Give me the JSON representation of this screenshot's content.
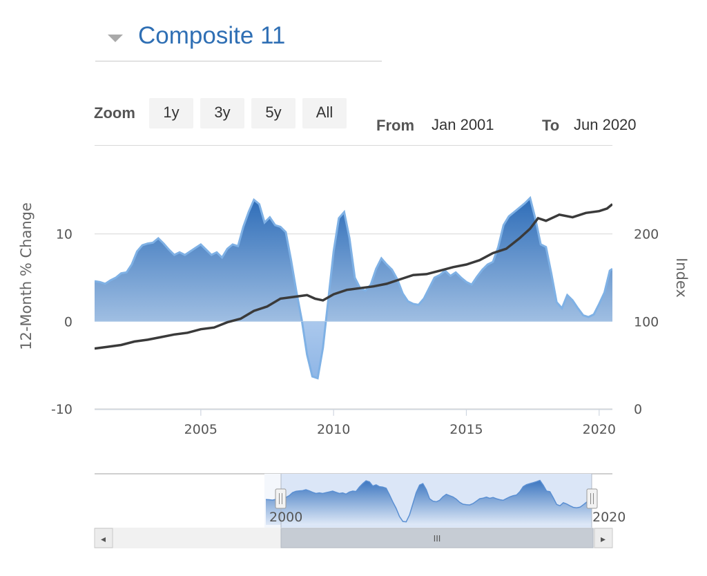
{
  "header": {
    "title": "Composite 11"
  },
  "toolbar": {
    "zoom_label": "Zoom",
    "buttons": [
      "1y",
      "3y",
      "5y",
      "All"
    ],
    "from_label": "From",
    "from_value": "Jan 2001",
    "to_label": "To",
    "to_value": "Jun 2020"
  },
  "chart_data": {
    "type": "area",
    "x_range": [
      2001.0,
      2020.5
    ],
    "x_ticks": [
      2005,
      2010,
      2015,
      2020
    ],
    "y_left": {
      "label": "12-Month % Change",
      "range": [
        -10,
        20
      ],
      "ticks": [
        10,
        0,
        -10
      ]
    },
    "y_right": {
      "label": "Index",
      "range": [
        0,
        300
      ],
      "ticks": [
        200,
        100,
        0
      ]
    },
    "series": [
      {
        "axis": "left",
        "points": [
          [
            2001.0,
            4.6
          ],
          [
            2001.2,
            4.5
          ],
          [
            2001.4,
            4.3
          ],
          [
            2001.6,
            4.7
          ],
          [
            2001.8,
            5.0
          ],
          [
            2002.0,
            5.5
          ],
          [
            2002.2,
            5.6
          ],
          [
            2002.4,
            6.5
          ],
          [
            2002.6,
            8.0
          ],
          [
            2002.8,
            8.7
          ],
          [
            2003.0,
            8.9
          ],
          [
            2003.2,
            9.0
          ],
          [
            2003.4,
            9.5
          ],
          [
            2003.6,
            8.9
          ],
          [
            2003.8,
            8.2
          ],
          [
            2004.0,
            7.6
          ],
          [
            2004.2,
            7.9
          ],
          [
            2004.4,
            7.6
          ],
          [
            2004.6,
            8.0
          ],
          [
            2004.8,
            8.4
          ],
          [
            2005.0,
            8.8
          ],
          [
            2005.2,
            8.2
          ],
          [
            2005.4,
            7.6
          ],
          [
            2005.6,
            7.9
          ],
          [
            2005.8,
            7.3
          ],
          [
            2006.0,
            8.3
          ],
          [
            2006.2,
            8.8
          ],
          [
            2006.4,
            8.6
          ],
          [
            2006.6,
            10.8
          ],
          [
            2006.8,
            12.5
          ],
          [
            2007.0,
            13.9
          ],
          [
            2007.2,
            13.4
          ],
          [
            2007.4,
            11.3
          ],
          [
            2007.6,
            11.9
          ],
          [
            2007.8,
            11.0
          ],
          [
            2008.0,
            10.8
          ],
          [
            2008.2,
            10.2
          ],
          [
            2008.4,
            7.0
          ],
          [
            2008.6,
            3.4
          ],
          [
            2008.8,
            0.2
          ],
          [
            2009.0,
            -3.8
          ],
          [
            2009.2,
            -6.3
          ],
          [
            2009.4,
            -6.5
          ],
          [
            2009.6,
            -3.0
          ],
          [
            2009.8,
            2.5
          ],
          [
            2010.0,
            8.0
          ],
          [
            2010.2,
            11.8
          ],
          [
            2010.4,
            12.5
          ],
          [
            2010.6,
            9.5
          ],
          [
            2010.8,
            5.0
          ],
          [
            2011.0,
            3.8
          ],
          [
            2011.2,
            3.5
          ],
          [
            2011.4,
            4.2
          ],
          [
            2011.6,
            6.0
          ],
          [
            2011.8,
            7.2
          ],
          [
            2012.0,
            6.5
          ],
          [
            2012.2,
            5.9
          ],
          [
            2012.4,
            4.8
          ],
          [
            2012.6,
            3.2
          ],
          [
            2012.8,
            2.3
          ],
          [
            2013.0,
            2.0
          ],
          [
            2013.2,
            1.9
          ],
          [
            2013.4,
            2.6
          ],
          [
            2013.6,
            3.8
          ],
          [
            2013.8,
            5.0
          ],
          [
            2014.0,
            5.3
          ],
          [
            2014.2,
            5.8
          ],
          [
            2014.4,
            5.2
          ],
          [
            2014.6,
            5.6
          ],
          [
            2014.8,
            5.0
          ],
          [
            2015.0,
            4.5
          ],
          [
            2015.2,
            4.2
          ],
          [
            2015.4,
            5.1
          ],
          [
            2015.6,
            5.9
          ],
          [
            2015.8,
            6.5
          ],
          [
            2016.0,
            6.8
          ],
          [
            2016.2,
            8.5
          ],
          [
            2016.4,
            11.0
          ],
          [
            2016.6,
            12.0
          ],
          [
            2016.8,
            12.5
          ],
          [
            2017.0,
            13.0
          ],
          [
            2017.2,
            13.5
          ],
          [
            2017.4,
            14.1
          ],
          [
            2017.6,
            11.7
          ],
          [
            2017.8,
            8.8
          ],
          [
            2018.0,
            8.5
          ],
          [
            2018.2,
            5.5
          ],
          [
            2018.4,
            2.2
          ],
          [
            2018.6,
            1.5
          ],
          [
            2018.8,
            3.0
          ],
          [
            2019.0,
            2.4
          ],
          [
            2019.2,
            1.5
          ],
          [
            2019.4,
            0.7
          ],
          [
            2019.6,
            0.5
          ],
          [
            2019.8,
            0.8
          ],
          [
            2020.0,
            2.0
          ],
          [
            2020.2,
            3.3
          ],
          [
            2020.4,
            5.8
          ],
          [
            2020.5,
            6.0
          ]
        ]
      },
      {
        "axis": "right",
        "points": [
          [
            2001.0,
            69
          ],
          [
            2001.5,
            71
          ],
          [
            2002.0,
            73
          ],
          [
            2002.5,
            77
          ],
          [
            2003.0,
            79
          ],
          [
            2003.5,
            82
          ],
          [
            2004.0,
            85
          ],
          [
            2004.5,
            87
          ],
          [
            2005.0,
            91
          ],
          [
            2005.5,
            93
          ],
          [
            2006.0,
            99
          ],
          [
            2006.5,
            103
          ],
          [
            2007.0,
            112
          ],
          [
            2007.5,
            117
          ],
          [
            2008.0,
            126
          ],
          [
            2008.5,
            128
          ],
          [
            2009.0,
            130
          ],
          [
            2009.3,
            126
          ],
          [
            2009.6,
            124
          ],
          [
            2010.0,
            131
          ],
          [
            2010.5,
            136
          ],
          [
            2011.0,
            138
          ],
          [
            2011.5,
            140
          ],
          [
            2012.0,
            143
          ],
          [
            2012.5,
            148
          ],
          [
            2013.0,
            153
          ],
          [
            2013.5,
            154
          ],
          [
            2014.0,
            158
          ],
          [
            2014.5,
            162
          ],
          [
            2015.0,
            165
          ],
          [
            2015.5,
            170
          ],
          [
            2016.0,
            178
          ],
          [
            2016.5,
            183
          ],
          [
            2017.0,
            195
          ],
          [
            2017.4,
            206
          ],
          [
            2017.7,
            218
          ],
          [
            2018.0,
            215
          ],
          [
            2018.5,
            222
          ],
          [
            2019.0,
            219
          ],
          [
            2019.5,
            224
          ],
          [
            2020.0,
            226
          ],
          [
            2020.3,
            229
          ],
          [
            2020.5,
            234
          ]
        ]
      }
    ]
  },
  "navigator": {
    "x_labels": [
      "2000",
      "2020"
    ],
    "scrollbar_grip": "III",
    "scroll_left_icon": "◂",
    "scroll_right_icon": "▸",
    "handle_glyph": "||"
  },
  "colors": {
    "title": "#2f6fb4",
    "area_top": "#3a78c4",
    "area_bottom": "#d2e3f6",
    "area_line": "#7fb1e5",
    "index_line": "#3a3a3a",
    "navigator_fill": "#dbe6f7"
  }
}
